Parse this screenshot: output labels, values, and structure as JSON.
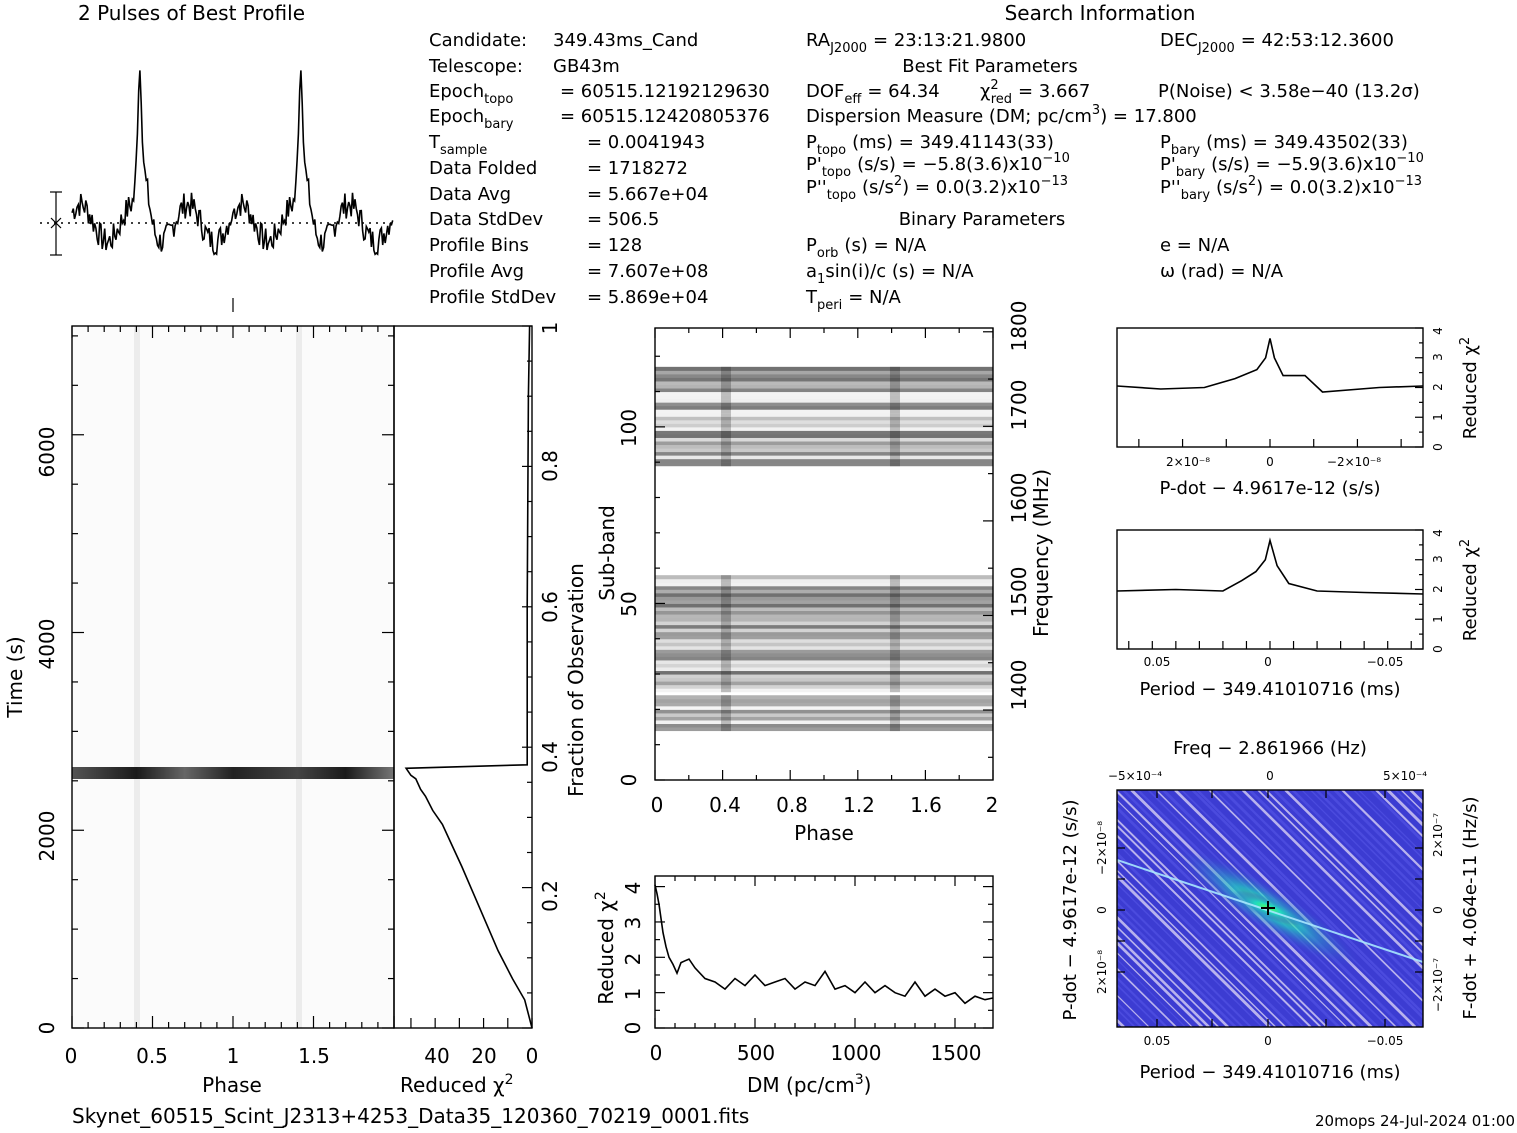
{
  "header": {
    "profile_title": "2 Pulses of Best Profile",
    "search_title": "Search Information",
    "best_fit_title": "Best Fit Parameters",
    "binary_title": "Binary Parameters"
  },
  "candidate_info": [
    {
      "label": "Candidate:",
      "sub": "",
      "value": "349.43ms_Cand"
    },
    {
      "label": "Telescope:",
      "sub": "",
      "value": "GB43m"
    },
    {
      "label": "Epoch",
      "sub": "topo",
      "value": "= 60515.12192129630"
    },
    {
      "label": "Epoch",
      "sub": "bary",
      "value": "= 60515.12420805376"
    },
    {
      "label": "T",
      "sub": "sample",
      "value": "=   0.0041943"
    },
    {
      "label": "Data Folded",
      "sub": "",
      "value": "=   1718272"
    },
    {
      "label": "Data Avg",
      "sub": "",
      "value": "=   5.667e+04"
    },
    {
      "label": "Data StdDev",
      "sub": "",
      "value": "=   506.5"
    },
    {
      "label": "Profile Bins",
      "sub": "",
      "value": "=   128"
    },
    {
      "label": "Profile Avg",
      "sub": "",
      "value": "=   7.607e+08"
    },
    {
      "label": "Profile StdDev",
      "sub": "",
      "value": "=   5.869e+04"
    }
  ],
  "search_info": {
    "ra": {
      "label": "RA",
      "sub": "J2000",
      "value": "= 23:13:21.9800"
    },
    "dec": {
      "label": "DEC",
      "sub": "J2000",
      "value": "= 42:53:12.3600"
    },
    "dof": {
      "label": "DOF",
      "sub": "eff",
      "value": "= 64.34"
    },
    "chi2": {
      "label": "χ",
      "sup": "2",
      "sub": "red",
      "value": "= 3.667"
    },
    "pnoise": "P(Noise) < 3.58e−40   (13.2σ)",
    "dm_label": "Dispersion Measure (DM; pc/cm",
    "dm_sup": "3",
    "dm_value": ") = 17.800",
    "ptopo": {
      "label": "P",
      "sub": "topo",
      "value": "(ms) =  349.41143(33)"
    },
    "pbary": {
      "label": "P",
      "sub": "bary",
      "value": "(ms) =  349.43502(33)"
    },
    "pdtopo": {
      "label": "P'",
      "sub": "topo",
      "value": "(s/s) = −5.8(3.6)x10",
      "exp": "−10"
    },
    "pdbary": {
      "label": "P'",
      "sub": "bary",
      "value": "(s/s) = −5.9(3.6)x10",
      "exp": "−10"
    },
    "pddtopo": {
      "label": "P''",
      "sub": "topo",
      "value": "(s/s",
      "sup2": "2",
      "value2": ") = 0.0(3.2)x10",
      "exp": "−13"
    },
    "pddbary": {
      "label": "P''",
      "sub": "bary",
      "value": "(s/s",
      "sup2": "2",
      "value2": ") = 0.0(3.2)x10",
      "exp": "−13"
    },
    "porb": {
      "label": "P",
      "sub": "orb",
      "value": "(s) = N/A"
    },
    "ecc": "e = N/A",
    "a1": {
      "label": "a",
      "sub": "1",
      "value": "sin(i)/c (s) = N/A"
    },
    "omega": "ω (rad) = N/A",
    "tperi": {
      "label": "T",
      "sub": "peri",
      "value": "= N/A"
    }
  },
  "footer": {
    "filename": "Skynet_60515_Scint_J2313+4253_Data35_120360_70219_0001.fits",
    "stamp": "20mops 24-Jul-2024 01:00"
  },
  "colors": {
    "stripe_dark": "#2a2a2a",
    "ppdot_bg": "#3c3cd2",
    "ppdot_peak": "#2ee8a0"
  },
  "chart_data": [
    {
      "type": "line",
      "name": "profile",
      "title": "2 Pulses of Best Profile",
      "x_range": [
        0,
        2
      ],
      "peaks": [
        0.42,
        1.42
      ],
      "errorbar": true,
      "grid": false
    },
    {
      "type": "heatmap",
      "name": "time-phase",
      "xlabel": "Phase",
      "ylabel": "Time (s)",
      "xlim": [
        0,
        2
      ],
      "ylim": [
        0,
        7100
      ],
      "xticks": [
        "0",
        "0.5",
        "1",
        "1.5"
      ],
      "yticks": [
        "0",
        "2000",
        "4000",
        "6000"
      ],
      "bright_band_time_s": 2660,
      "pulse_phase": [
        0.42,
        1.42
      ]
    },
    {
      "type": "line",
      "name": "reduced-chi2-vs-time",
      "xlabel": "Reduced χ2",
      "ylabel": "Fraction of Observation",
      "x_reversed": true,
      "xlim": [
        0,
        57
      ],
      "ylim": [
        0,
        1
      ],
      "xticks": [
        "40",
        "20",
        "0"
      ],
      "yticks": [
        "0.2",
        "0.4",
        "0.6",
        "0.8",
        "1"
      ],
      "points": [
        [
          0,
          0
        ],
        [
          3,
          0.04
        ],
        [
          8,
          0.07
        ],
        [
          14,
          0.11
        ],
        [
          19,
          0.15
        ],
        [
          24,
          0.19
        ],
        [
          29,
          0.23
        ],
        [
          33,
          0.26
        ],
        [
          37,
          0.29
        ],
        [
          41,
          0.31
        ],
        [
          44,
          0.33
        ],
        [
          46,
          0.34
        ],
        [
          48,
          0.355
        ],
        [
          50,
          0.36
        ],
        [
          51,
          0.365
        ],
        [
          52,
          0.37
        ],
        [
          2,
          0.375
        ],
        [
          2,
          0.6
        ],
        [
          1.5,
          0.9
        ],
        [
          1,
          1
        ]
      ]
    },
    {
      "type": "heatmap",
      "name": "subband-phase",
      "xlabel": "Phase",
      "ylabel": "Sub-band",
      "ylabel2": "Frequency (MHz)",
      "xlim": [
        0,
        2
      ],
      "ylim": [
        0,
        128
      ],
      "xticks": [
        "0",
        "0.4",
        "0.8",
        "1.2",
        "1.6",
        "2"
      ],
      "yticks": [
        "0",
        "50",
        "100"
      ],
      "freq_ticks": [
        "1400",
        "1500",
        "1600",
        "1700",
        "1800"
      ],
      "freq_range": [
        1326,
        1804
      ],
      "active_subband_ranges": [
        [
          14,
          23
        ],
        [
          25,
          57
        ],
        [
          89,
          116
        ]
      ]
    },
    {
      "type": "line",
      "name": "chi2-vs-dm",
      "xlabel": "DM (pc/cm3)",
      "ylabel": "Reduced χ2",
      "xlim": [
        0,
        1690
      ],
      "ylim": [
        0,
        4.3
      ],
      "xticks": [
        "0",
        "500",
        "1000",
        "1500"
      ],
      "yticks": [
        "0",
        "1",
        "2",
        "3",
        "4"
      ],
      "points": [
        [
          0,
          4.05
        ],
        [
          10,
          3.8
        ],
        [
          20,
          3.5
        ],
        [
          30,
          3.1
        ],
        [
          40,
          2.7
        ],
        [
          55,
          2.3
        ],
        [
          70,
          2.0
        ],
        [
          90,
          1.8
        ],
        [
          110,
          1.55
        ],
        [
          130,
          1.85
        ],
        [
          150,
          1.9
        ],
        [
          170,
          1.95
        ],
        [
          200,
          1.7
        ],
        [
          250,
          1.4
        ],
        [
          300,
          1.3
        ],
        [
          350,
          1.1
        ],
        [
          400,
          1.4
        ],
        [
          450,
          1.2
        ],
        [
          500,
          1.5
        ],
        [
          550,
          1.2
        ],
        [
          600,
          1.3
        ],
        [
          650,
          1.4
        ],
        [
          700,
          1.1
        ],
        [
          750,
          1.3
        ],
        [
          800,
          1.2
        ],
        [
          850,
          1.6
        ],
        [
          900,
          1.1
        ],
        [
          950,
          1.2
        ],
        [
          1000,
          1.0
        ],
        [
          1050,
          1.3
        ],
        [
          1100,
          1.0
        ],
        [
          1150,
          1.2
        ],
        [
          1200,
          1.0
        ],
        [
          1250,
          0.9
        ],
        [
          1300,
          1.3
        ],
        [
          1350,
          0.9
        ],
        [
          1400,
          1.1
        ],
        [
          1450,
          0.9
        ],
        [
          1500,
          1.0
        ],
        [
          1550,
          0.7
        ],
        [
          1600,
          0.9
        ],
        [
          1650,
          0.8
        ],
        [
          1690,
          0.85
        ]
      ]
    },
    {
      "type": "line",
      "name": "chi2-vs-pdot",
      "xlabel": "P-dot − 4.9617e-12 (s/s)",
      "ylabel": "Reduced χ2",
      "x_reversed": true,
      "xlim": [
        3.5e-08,
        -3.5e-08
      ],
      "ylim": [
        0,
        4
      ],
      "xticks": [
        "2×10⁻⁸",
        "0",
        "−2×10⁻⁸"
      ],
      "yticks": [
        "0",
        "1",
        "2",
        "3",
        "4"
      ],
      "points": [
        [
          3.5e-08,
          2.05
        ],
        [
          2.5e-08,
          1.95
        ],
        [
          1.5e-08,
          2.0
        ],
        [
          8e-09,
          2.3
        ],
        [
          3e-09,
          2.6
        ],
        [
          1e-09,
          3.0
        ],
        [
          0,
          3.65
        ],
        [
          -1e-09,
          3.0
        ],
        [
          -3e-09,
          2.4
        ],
        [
          -8e-09,
          2.4
        ],
        [
          -1.2e-08,
          1.85
        ],
        [
          -2.5e-08,
          2.0
        ],
        [
          -3.5e-08,
          2.05
        ]
      ]
    },
    {
      "type": "line",
      "name": "chi2-vs-period",
      "xlabel": "Period − 349.41010716 (ms)",
      "ylabel": "Reduced χ2",
      "x_reversed": true,
      "xlim": [
        0.065,
        -0.065
      ],
      "ylim": [
        0,
        4
      ],
      "xticks": [
        "0.05",
        "0",
        "−0.05"
      ],
      "yticks": [
        "0",
        "1",
        "2",
        "3",
        "4"
      ],
      "points": [
        [
          0.065,
          1.95
        ],
        [
          0.04,
          2.0
        ],
        [
          0.02,
          1.95
        ],
        [
          0.012,
          2.3
        ],
        [
          0.006,
          2.6
        ],
        [
          0.002,
          3.0
        ],
        [
          0,
          3.65
        ],
        [
          -0.003,
          2.8
        ],
        [
          -0.008,
          2.2
        ],
        [
          -0.02,
          1.95
        ],
        [
          -0.04,
          1.9
        ],
        [
          -0.065,
          1.85
        ]
      ]
    },
    {
      "type": "heatmap",
      "name": "p-pdot",
      "title": "Freq − 2.861966 (Hz)",
      "xlabel": "Period − 349.41010716 (ms)",
      "ylabel": "P-dot − 4.9617e-12 (s/s)",
      "ylabel2": "F-dot + 4.064e-11 (Hz/s)",
      "xticks": [
        "0.05",
        "0",
        "−0.05"
      ],
      "top_ticks": [
        "−5×10⁻⁴",
        "0",
        "5×10⁻⁴"
      ],
      "yticks": [
        "−2×10⁻⁸",
        "0",
        "2×10⁻⁸"
      ],
      "right_ticks": [
        "2×10⁻⁷",
        "0",
        "−2×10⁻⁷"
      ],
      "best_point": [
        0,
        0
      ]
    }
  ]
}
